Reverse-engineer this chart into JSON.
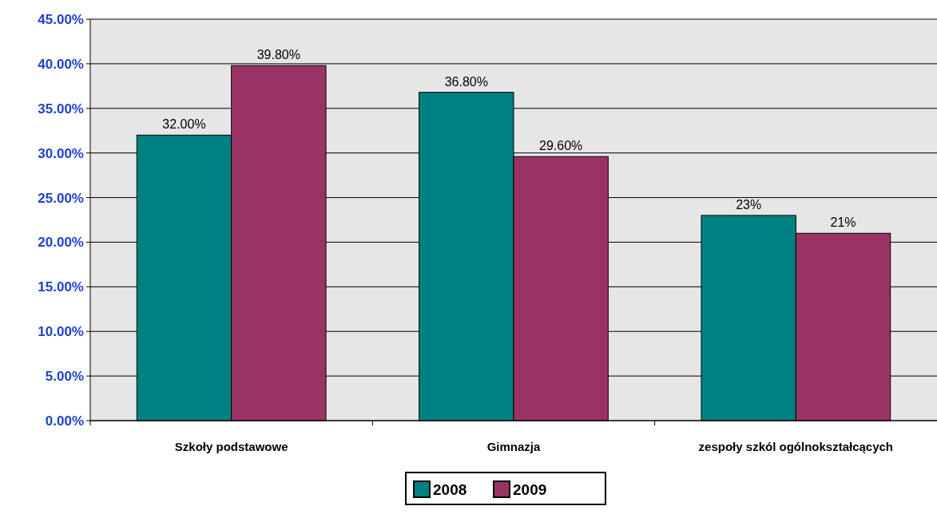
{
  "chart_data": {
    "type": "bar",
    "categories": [
      "Szkoły podstawowe",
      "Gimnazja",
      "zespoły szkól ogólnokształcących"
    ],
    "series": [
      {
        "name": "2008",
        "color": "#008080",
        "values": [
          32,
          36.8,
          23
        ],
        "value_labels": [
          "32.00%",
          "36.80%",
          "23%"
        ]
      },
      {
        "name": "2009",
        "color": "#993366",
        "values": [
          39.8,
          29.6,
          21
        ],
        "value_labels": [
          "39.80%",
          "29.60%",
          "21%"
        ]
      }
    ],
    "ylim": [
      0,
      45
    ],
    "yticks": [
      {
        "value": 0,
        "label": "0.00%"
      },
      {
        "value": 5,
        "label": "5.00%"
      },
      {
        "value": 10,
        "label": "10.00%"
      },
      {
        "value": 15,
        "label": "15.00%"
      },
      {
        "value": 20,
        "label": "20.00%"
      },
      {
        "value": 25,
        "label": "25.00%"
      },
      {
        "value": 30,
        "label": "30.00%"
      },
      {
        "value": 35,
        "label": "35.00%"
      },
      {
        "value": 40,
        "label": "40.00%"
      },
      {
        "value": 45,
        "label": "45.00%"
      }
    ],
    "grid": "y",
    "legend": "bottom"
  }
}
